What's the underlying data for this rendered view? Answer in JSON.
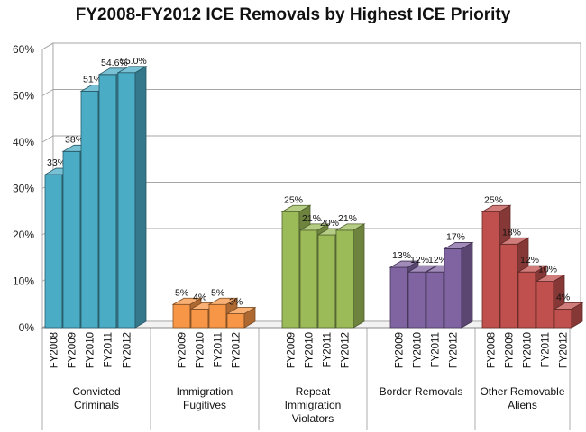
{
  "chart_data": {
    "type": "bar",
    "title": "FY2008-FY2012 ICE Removals by Highest ICE Priority",
    "xlabel": "",
    "ylabel": "",
    "ylim": [
      0,
      60
    ],
    "yticks": [
      0,
      10,
      20,
      30,
      40,
      50,
      60
    ],
    "ytick_labels": [
      "0%",
      "10%",
      "20%",
      "30%",
      "40%",
      "50%",
      "60%"
    ],
    "grid": true,
    "legend": "none",
    "groups": [
      {
        "name": "Convicted Criminals",
        "color": "#4bacc6",
        "bars": [
          {
            "year": "FY2008",
            "value": 33,
            "label": "33%"
          },
          {
            "year": "FY2009",
            "value": 38,
            "label": "38%"
          },
          {
            "year": "FY2010",
            "value": 51,
            "label": "51%"
          },
          {
            "year": "FY2011",
            "value": 54.6,
            "label": "54.6%"
          },
          {
            "year": "FY2012",
            "value": 55.0,
            "label": "55.0%"
          }
        ]
      },
      {
        "name": "Immigration Fugitives",
        "color": "#f79646",
        "bars": [
          {
            "year": "FY2009",
            "value": 5,
            "label": "5%"
          },
          {
            "year": "FY2010",
            "value": 4,
            "label": "4%"
          },
          {
            "year": "FY2011",
            "value": 5,
            "label": "5%"
          },
          {
            "year": "FY2012",
            "value": 3,
            "label": "3%"
          }
        ]
      },
      {
        "name": "Repeat Immigration Violators",
        "color": "#9bbb59",
        "bars": [
          {
            "year": "FY2009",
            "value": 25,
            "label": "25%"
          },
          {
            "year": "FY2010",
            "value": 21,
            "label": "21%"
          },
          {
            "year": "FY2011",
            "value": 20,
            "label": "20%"
          },
          {
            "year": "FY2012",
            "value": 21,
            "label": "21%"
          }
        ]
      },
      {
        "name": "Border Removals",
        "color": "#8064a2",
        "bars": [
          {
            "year": "FY2009",
            "value": 13,
            "label": "13%"
          },
          {
            "year": "FY2010",
            "value": 12,
            "label": "12%"
          },
          {
            "year": "FY2011",
            "value": 12,
            "label": "12%"
          },
          {
            "year": "FY2012",
            "value": 17,
            "label": "17%"
          }
        ]
      },
      {
        "name": "Other Removable Aliens",
        "color": "#c0504d",
        "bars": [
          {
            "year": "FY2008",
            "value": 25,
            "label": "25%"
          },
          {
            "year": "FY2009",
            "value": 18,
            "label": "18%"
          },
          {
            "year": "FY2010",
            "value": 12,
            "label": "12%"
          },
          {
            "year": "FY2011",
            "value": 10,
            "label": "10%"
          },
          {
            "year": "FY2012",
            "value": 4,
            "label": "4%"
          }
        ]
      }
    ]
  }
}
